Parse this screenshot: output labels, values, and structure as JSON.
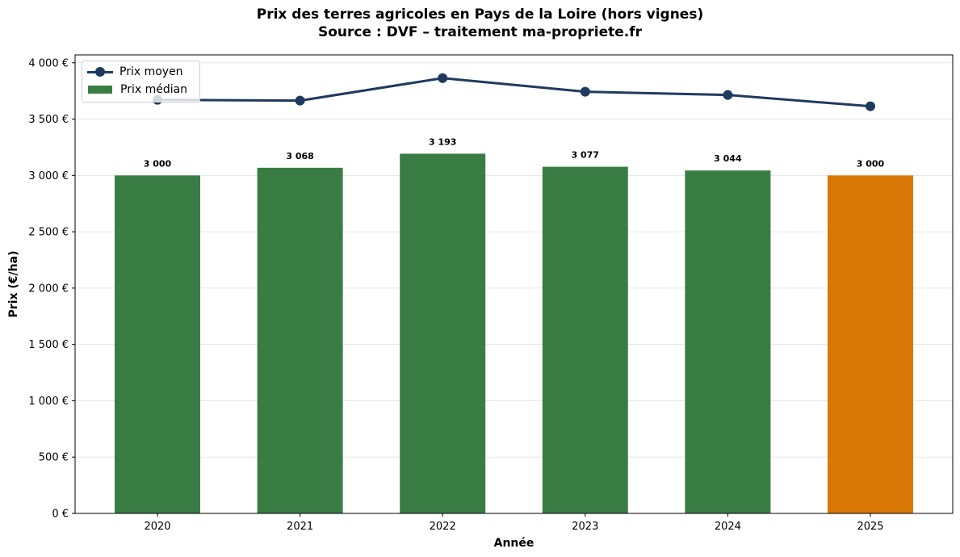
{
  "title": {
    "line1": "Prix des terres agricoles en Pays de la Loire (hors vignes)",
    "line2": "Source : DVF – traitement ma-propriete.fr"
  },
  "axes": {
    "xlabel": "Année",
    "ylabel": "Prix (€/ha)",
    "yticks": [
      "0 €",
      "500 €",
      "1 000 €",
      "1 500 €",
      "2 000 €",
      "2 500 €",
      "3 000 €",
      "3 500 €",
      "4 000 €"
    ],
    "ytick_values": [
      0,
      500,
      1000,
      1500,
      2000,
      2500,
      3000,
      3500,
      4000
    ]
  },
  "legend": {
    "items": [
      {
        "label": "Prix moyen",
        "type": "line",
        "color": "#1f3a5f"
      },
      {
        "label": "Prix médian",
        "type": "bar",
        "color": "#3a7d44"
      }
    ]
  },
  "colors": {
    "median_bar": "#3a7d44",
    "highlight_bar": "#d97706",
    "mean_line": "#1f3a5f",
    "grid": "#e6e6e6"
  },
  "chart_data": {
    "type": "bar",
    "title": "Prix des terres agricoles en Pays de la Loire (hors vignes) — Source : DVF – traitement ma-propriete.fr",
    "xlabel": "Année",
    "ylabel": "Prix (€/ha)",
    "categories": [
      "2020",
      "2021",
      "2022",
      "2023",
      "2024",
      "2025"
    ],
    "series": [
      {
        "name": "Prix médian",
        "type": "bar",
        "values": [
          3000,
          3068,
          3193,
          3077,
          3044,
          3000
        ],
        "labels": [
          "3 000",
          "3 068",
          "3 193",
          "3 077",
          "3 044",
          "3 000"
        ]
      },
      {
        "name": "Prix moyen",
        "type": "line",
        "values": [
          3671,
          3664,
          3864,
          3743,
          3714,
          3614
        ]
      }
    ],
    "highlighted_category": "2025",
    "ylim": [
      0,
      4070
    ],
    "grid": "horizontal",
    "legend_position": "upper left"
  }
}
